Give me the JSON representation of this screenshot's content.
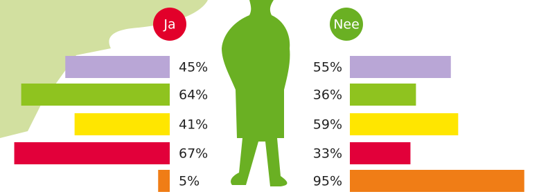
{
  "chart_data": {
    "type": "butterfly",
    "colors": [
      "#b9a6d6",
      "#8fc31f",
      "#ffe600",
      "#e2003a",
      "#f07d16"
    ],
    "series": [
      {
        "name": "Ja",
        "color": "#e2002a",
        "values": [
          45,
          64,
          41,
          67,
          5
        ],
        "value_labels": [
          "45%",
          "64%",
          "41%",
          "67%",
          "5%"
        ]
      },
      {
        "name": "Nee",
        "color": "#6ab023",
        "values": [
          55,
          36,
          59,
          33,
          95
        ],
        "value_labels": [
          "55%",
          "36%",
          "59%",
          "33%",
          "95%"
        ]
      }
    ]
  }
}
